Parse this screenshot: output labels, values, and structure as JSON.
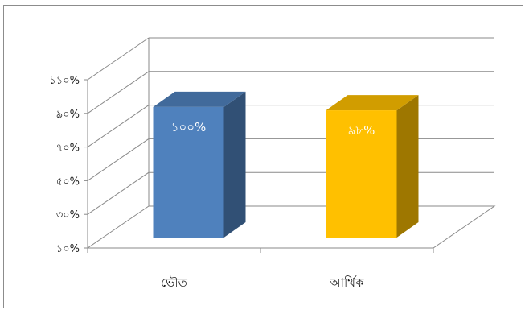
{
  "chart_data": {
    "type": "bar",
    "style": "3d-column",
    "categories": [
      "ভৌত",
      "আর্থিক"
    ],
    "values": [
      100,
      98
    ],
    "data_labels": [
      "১০০%",
      "৯৮%"
    ],
    "bar_colors": [
      "#4f81bd",
      "#ffc000"
    ],
    "y_tick_values": [
      10,
      30,
      50,
      70,
      90,
      110
    ],
    "y_tick_labels": [
      "১০%",
      "৩০%",
      "৫০%",
      "৭০%",
      "৯০%",
      "১১০%"
    ],
    "ylim": [
      10,
      110
    ],
    "grid": true,
    "title": "",
    "xlabel": "",
    "ylabel": "",
    "legend": "none"
  }
}
